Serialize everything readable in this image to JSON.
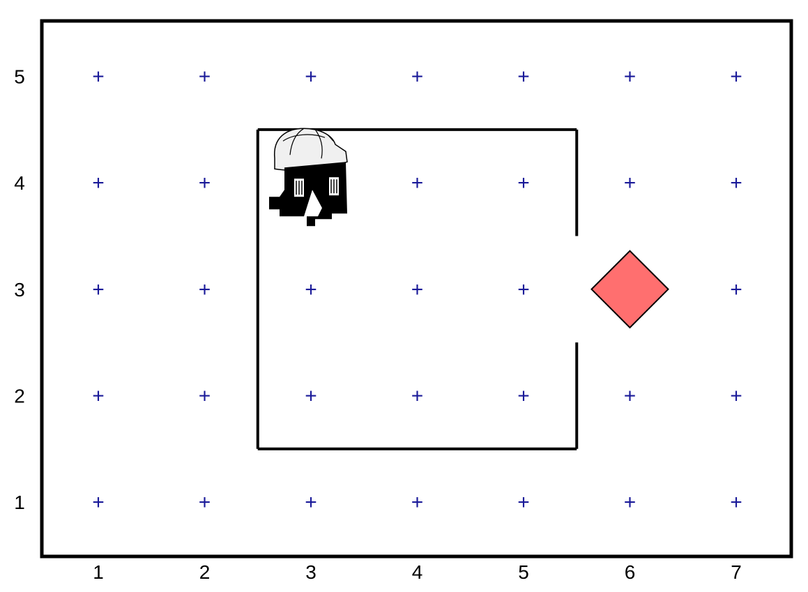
{
  "world": {
    "columns": [
      1,
      2,
      3,
      4,
      5,
      6,
      7
    ],
    "rows": [
      5,
      4,
      3,
      2,
      1
    ],
    "marker_symbol": "+",
    "marker_color": "#1a1a99",
    "wall_color": "#000000",
    "background_color": "#ffffff",
    "walls": [
      {
        "name": "inner-wall-top",
        "from": [
          2.5,
          4.5
        ],
        "to": [
          5.5,
          4.5
        ]
      },
      {
        "name": "inner-wall-left",
        "from": [
          2.5,
          4.5
        ],
        "to": [
          2.5,
          1.5
        ]
      },
      {
        "name": "inner-wall-bottom",
        "from": [
          2.5,
          1.5
        ],
        "to": [
          5.5,
          1.5
        ]
      },
      {
        "name": "inner-wall-right-upper",
        "from": [
          5.5,
          4.5
        ],
        "to": [
          5.5,
          3.5
        ]
      },
      {
        "name": "inner-wall-right-lower",
        "from": [
          5.5,
          2.5
        ],
        "to": [
          5.5,
          1.5
        ]
      }
    ],
    "robot": {
      "icon": "robot-helmet-icon",
      "x": 3,
      "y": 4,
      "facing": "east"
    },
    "goal": {
      "icon": "diamond-icon",
      "x": 6,
      "y": 3,
      "color": "#ff6f6f"
    }
  }
}
